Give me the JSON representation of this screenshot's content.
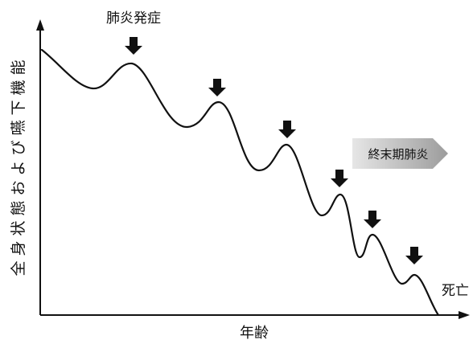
{
  "diagram": {
    "onset_label": "肺炎発症",
    "y_axis_label": "全身状態および嚥下機能",
    "x_axis_label": "年齢",
    "terminal_label": "終末期肺炎",
    "death_label": "死亡"
  },
  "icons": {
    "event_marker": "down-arrow-icon",
    "terminal_phase": "right-arrow-icon"
  },
  "colors": {
    "ink": "#111111",
    "terminal_gradient_start": "#e6e6e6",
    "terminal_gradient_end": "#9c9c9c"
  }
}
